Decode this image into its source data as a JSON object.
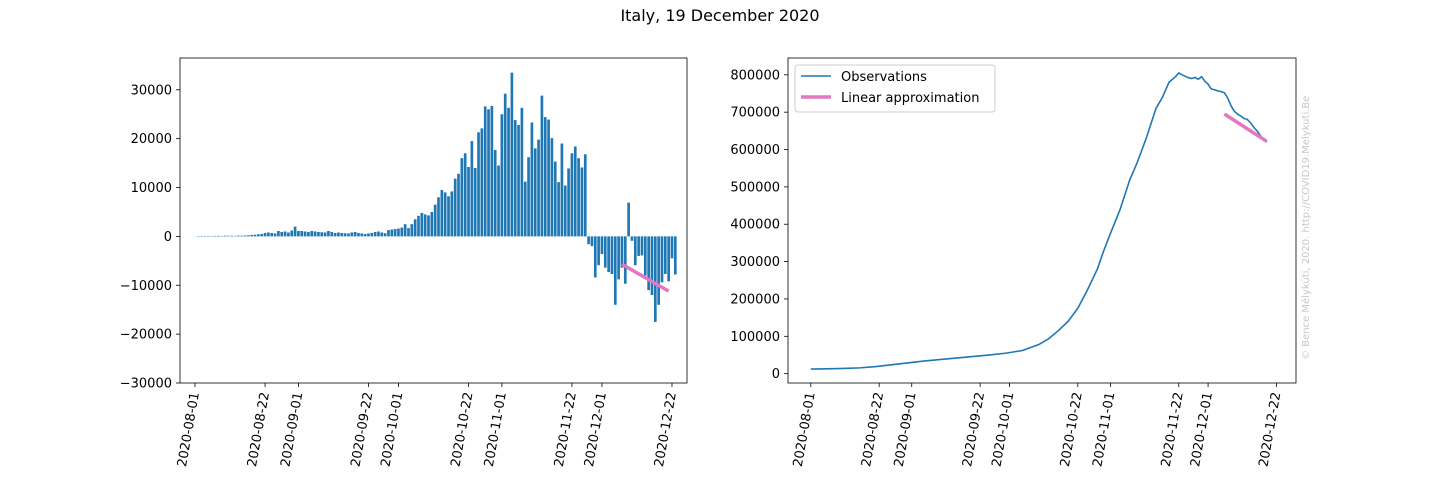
{
  "figure": {
    "title": "Italy, 19 December 2020",
    "watermark": "© Bence Mélykúti, 2020. http://COVID19.Melykuti.Be"
  },
  "chart_data": [
    {
      "type": "bar",
      "x_tick_labels": [
        "2020-08-01",
        "2020-08-22",
        "2020-09-01",
        "2020-09-22",
        "2020-10-01",
        "2020-10-22",
        "2020-11-01",
        "2020-11-22",
        "2020-12-01",
        "2020-12-22"
      ],
      "x_tick_days": [
        0,
        21,
        31,
        52,
        61,
        82,
        92,
        113,
        122,
        143
      ],
      "ylim": [
        -30000,
        36500
      ],
      "y_ticks": [
        -30000,
        -20000,
        -10000,
        0,
        10000,
        20000,
        30000
      ],
      "y_tick_labels": [
        "−30000",
        "−20000",
        "−10000",
        "0",
        "10000",
        "20000",
        "30000"
      ],
      "bar_color": "#1f77b4",
      "bars": {
        "start_day": 1,
        "values": [
          80,
          60,
          70,
          90,
          50,
          100,
          120,
          80,
          150,
          110,
          130,
          100,
          160,
          140,
          180,
          220,
          300,
          350,
          420,
          500,
          700,
          800,
          700,
          600,
          1100,
          900,
          1000,
          800,
          1200,
          2000,
          1100,
          1100,
          1000,
          900,
          1100,
          1000,
          900,
          850,
          800,
          1100,
          900,
          700,
          800,
          700,
          650,
          600,
          800,
          900,
          700,
          600,
          500,
          600,
          700,
          900,
          1000,
          800,
          650,
          1300,
          1400,
          1500,
          1600,
          1800,
          2500,
          1700,
          2500,
          3500,
          4200,
          4800,
          4500,
          4300,
          5000,
          6500,
          8000,
          9500,
          9000,
          8200,
          9200,
          11800,
          12800,
          16000,
          17000,
          14200,
          19500,
          14000,
          21300,
          22100,
          26600,
          26000,
          26700,
          17700,
          14500,
          25000,
          29200,
          26300,
          33500,
          23800,
          22800,
          26300,
          11200,
          16200,
          23300,
          18000,
          19800,
          28800,
          24400,
          23900,
          20100,
          15300,
          11100,
          19000,
          10400,
          13900,
          17000,
          18400,
          16000,
          14100,
          16800,
          -1600,
          -2000,
          -8400,
          -5900,
          -3600,
          -6400,
          -7300,
          -7700,
          -14000,
          -8800,
          -6400,
          -9700,
          6900,
          -900,
          -5900,
          -4000,
          -3900,
          -8000,
          -11000,
          -12000,
          -17500,
          -14000,
          -9400,
          -7700,
          -9200,
          -4500,
          -7800
        ]
      },
      "trend": {
        "color": "#e377c2",
        "x_days": [
          128,
          142
        ],
        "y": [
          -5700,
          -11200
        ]
      }
    },
    {
      "type": "line",
      "x_tick_labels": [
        "2020-08-01",
        "2020-08-22",
        "2020-09-01",
        "2020-09-22",
        "2020-10-01",
        "2020-10-22",
        "2020-11-01",
        "2020-11-22",
        "2020-12-01",
        "2020-12-22"
      ],
      "x_tick_days": [
        0,
        21,
        31,
        52,
        61,
        82,
        92,
        113,
        122,
        143
      ],
      "ylim": [
        -25000,
        845000
      ],
      "y_ticks": [
        0,
        100000,
        200000,
        300000,
        400000,
        500000,
        600000,
        700000,
        800000
      ],
      "y_tick_labels": [
        "0",
        "100000",
        "200000",
        "300000",
        "400000",
        "500000",
        "600000",
        "700000",
        "800000"
      ],
      "legend_position": "top-left",
      "series": [
        {
          "name": "Observations",
          "color": "#1f77b4",
          "x_days": [
            0,
            5,
            10,
            15,
            20,
            25,
            30,
            35,
            40,
            45,
            50,
            55,
            60,
            65,
            70,
            73,
            76,
            79,
            82,
            85,
            88,
            90,
            92,
            95,
            98,
            100,
            103,
            106,
            108,
            110,
            112,
            113,
            114,
            115,
            116,
            117,
            118,
            119,
            120,
            121,
            122,
            123,
            124,
            125,
            126,
            127,
            128,
            129,
            130,
            131,
            132,
            133,
            134,
            135,
            136,
            137,
            138,
            139,
            140
          ],
          "y": [
            12400,
            13000,
            14000,
            15500,
            19000,
            24000,
            29000,
            34000,
            38000,
            42000,
            46000,
            50000,
            55000,
            62000,
            78000,
            93000,
            115000,
            140000,
            175000,
            225000,
            280000,
            330000,
            375000,
            440000,
            520000,
            560000,
            630000,
            710000,
            740000,
            780000,
            795000,
            805000,
            800000,
            796000,
            792000,
            790000,
            793000,
            788000,
            795000,
            783000,
            775000,
            762000,
            760000,
            757000,
            755000,
            752000,
            738000,
            718000,
            703000,
            695000,
            690000,
            683000,
            681000,
            672000,
            660000,
            650000,
            638000,
            627000,
            620000
          ]
        },
        {
          "name": "Linear approximation",
          "color": "#e377c2",
          "x_days": [
            127,
            140
          ],
          "y": [
            695000,
            622000
          ]
        }
      ]
    }
  ]
}
